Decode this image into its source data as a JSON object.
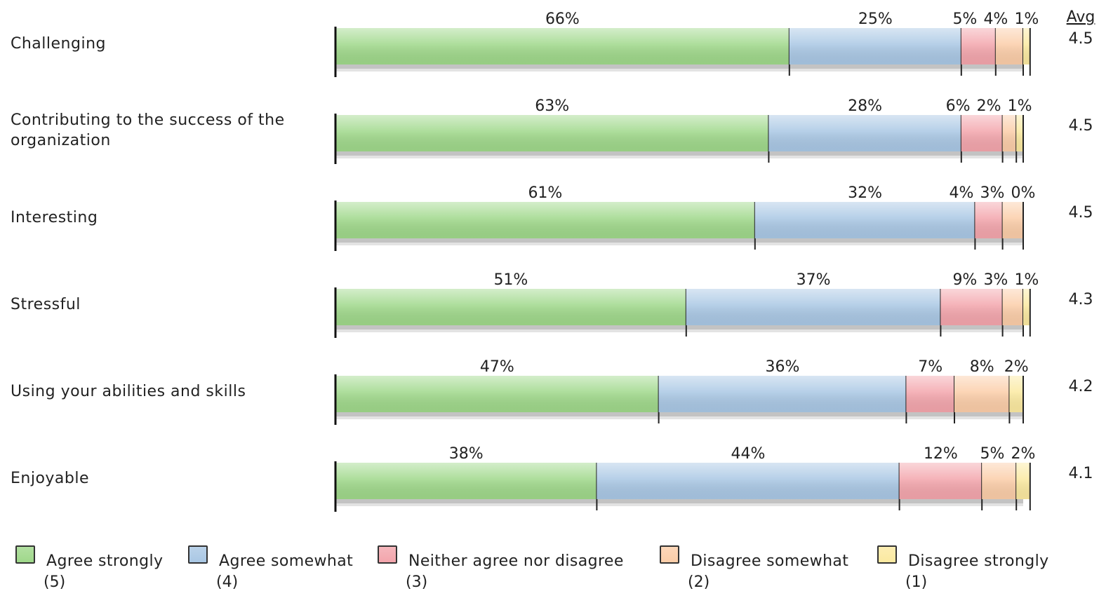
{
  "chart_data": {
    "type": "bar",
    "orientation": "horizontal",
    "stacked": true,
    "percent": true,
    "categories": [
      "Challenging",
      "Contributing to the success of the organization",
      "Interesting",
      "Stressful",
      "Using your abilities and skills",
      "Enjoyable"
    ],
    "series": [
      {
        "name": "Agree strongly",
        "score": "(5)",
        "color": "#9fd88a",
        "values": [
          66,
          63,
          61,
          51,
          47,
          38
        ]
      },
      {
        "name": "Agree somewhat",
        "score": "(4)",
        "color": "#a9c7e4",
        "values": [
          25,
          28,
          32,
          37,
          36,
          44
        ]
      },
      {
        "name": "Neither agree nor disagree",
        "score": "(3)",
        "color": "#f3a5ac",
        "values": [
          5,
          6,
          4,
          9,
          7,
          12
        ]
      },
      {
        "name": "Disagree somewhat",
        "score": "(2)",
        "color": "#fbcda8",
        "values": [
          4,
          2,
          3,
          3,
          8,
          5
        ]
      },
      {
        "name": "Disagree strongly",
        "score": "(1)",
        "color": "#fbe9a0",
        "values": [
          1,
          1,
          0,
          1,
          2,
          2
        ]
      }
    ],
    "avg_header": "Avg",
    "averages": [
      "4.5",
      "4.5",
      "4.5",
      "4.3",
      "4.2",
      "4.1"
    ],
    "legend_position": "bottom",
    "grid": false
  }
}
